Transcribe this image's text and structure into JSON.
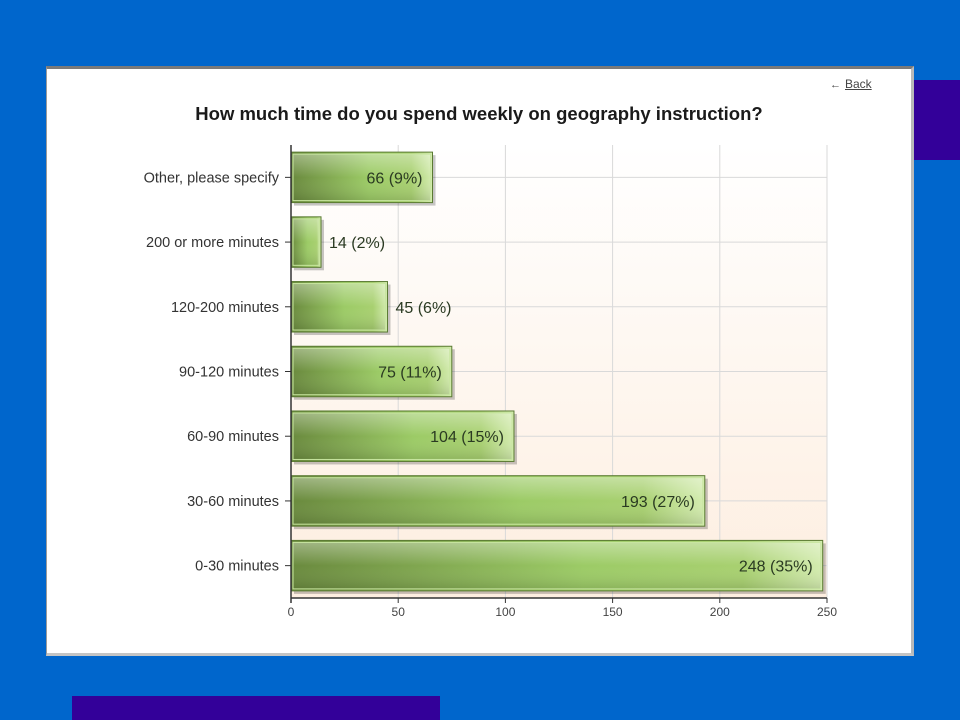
{
  "nav": {
    "back_arrow": "←",
    "back_label": "Back"
  },
  "chart_data": {
    "type": "bar",
    "orientation": "horizontal",
    "title": "How much time do you spend weekly on geography instruction?",
    "categories": [
      "Other, please specify",
      "200 or more minutes",
      "120-200 minutes",
      "90-120 minutes",
      "60-90 minutes",
      "30-60 minutes",
      "0-30 minutes"
    ],
    "values": [
      66,
      14,
      45,
      75,
      104,
      193,
      248
    ],
    "data_labels": [
      "66 (9%)",
      "14 (2%)",
      "45 (6%)",
      "75 (11%)",
      "104 (15%)",
      "193 (27%)",
      "248 (35%)"
    ],
    "xlim": [
      0,
      250
    ],
    "xticks": [
      0,
      50,
      100,
      150,
      200,
      250
    ],
    "grid": true,
    "legend": "none",
    "colors": {
      "bar_dark": "#6a8a3e",
      "bar_light": "#a8d070",
      "bar_highlight": "#d4ecb0",
      "plot_bg_bottom": "#fdeee0",
      "grid": "#d9d9d9"
    }
  }
}
